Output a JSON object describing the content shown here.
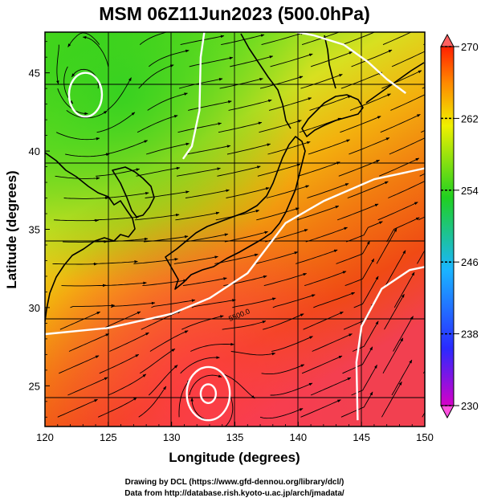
{
  "title": "MSM 06Z11Jun2023 (500.0hPa)",
  "xlabel": "Longitude (degrees)",
  "ylabel": "Latitude  (degrees)",
  "credits": [
    "Drawing by DCL (https://www.gfd-dennou.org/library/dcl/)",
    "Data from http://database.rish.kyoto-u.ac.jp/arch/jmadata/"
  ],
  "contour_label": "5500.0",
  "chart_data": {
    "type": "heatmap",
    "title": "MSM 06Z11Jun2023 (500.0hPa)",
    "xlabel": "Longitude (degrees)",
    "ylabel": "Latitude  (degrees)",
    "x_ticks": [
      120,
      125,
      130,
      135,
      140,
      145,
      150
    ],
    "y_ticks": [
      25,
      30,
      35,
      40,
      45
    ],
    "xlim": [
      120,
      150
    ],
    "ylim": [
      22.4,
      47.6
    ],
    "grid": true,
    "colorbar": {
      "min": 230,
      "max": 270,
      "ticks": [
        230,
        238,
        246,
        254,
        262,
        270
      ],
      "colors": [
        "#d600c8",
        "#2a2aff",
        "#1ab6ff",
        "#20d020",
        "#f0f000",
        "#ff8800",
        "#ff2000"
      ]
    },
    "temperature_field_approx": [
      {
        "lon": 123,
        "lat": 44,
        "value": 255
      },
      {
        "lon": 130,
        "lat": 42,
        "value": 258
      },
      {
        "lon": 140,
        "lat": 45,
        "value": 260
      },
      {
        "lon": 135,
        "lat": 37,
        "value": 263
      },
      {
        "lon": 140,
        "lat": 33,
        "value": 266
      },
      {
        "lon": 130,
        "lat": 28,
        "value": 268
      },
      {
        "lon": 145,
        "lat": 27,
        "value": 267
      },
      {
        "lon": 133,
        "lat": 24,
        "value": 270
      }
    ],
    "contours": [
      {
        "label": "5500.0",
        "points": [
          [
            120,
            28.3
          ],
          [
            125,
            28.7
          ],
          [
            130,
            29.6
          ],
          [
            133,
            30.6
          ],
          [
            136,
            32.2
          ],
          [
            139,
            35.4
          ],
          [
            142,
            36.8
          ],
          [
            146,
            38.2
          ],
          [
            150,
            38.9
          ]
        ]
      },
      {
        "points": [
          [
            144.7,
            22.8
          ],
          [
            144.6,
            26.5
          ],
          [
            145,
            28.8
          ],
          [
            146.6,
            31.2
          ],
          [
            148.8,
            32.4
          ],
          [
            150,
            32.6
          ]
        ]
      },
      {
        "points": [
          [
            139.3,
            47.7
          ],
          [
            141.2,
            47.4
          ],
          [
            143.6,
            46.8
          ],
          [
            145.5,
            45.7
          ],
          [
            147,
            44.6
          ],
          [
            148.5,
            43.7
          ]
        ]
      },
      {
        "points": [
          [
            132.6,
            47.7
          ],
          [
            132.3,
            46.0
          ],
          [
            132.2,
            42.6
          ],
          [
            131.6,
            40.3
          ],
          [
            130.9,
            39.5
          ]
        ]
      },
      {
        "center": [
          123.2,
          43.6
        ],
        "rx": 1.3,
        "ry": 1.4
      },
      {
        "center": [
          132.9,
          24.5
        ],
        "rx": 1.7,
        "ry": 1.7
      },
      {
        "center": [
          132.9,
          24.5
        ],
        "rx": 0.6,
        "ry": 0.6
      }
    ]
  }
}
